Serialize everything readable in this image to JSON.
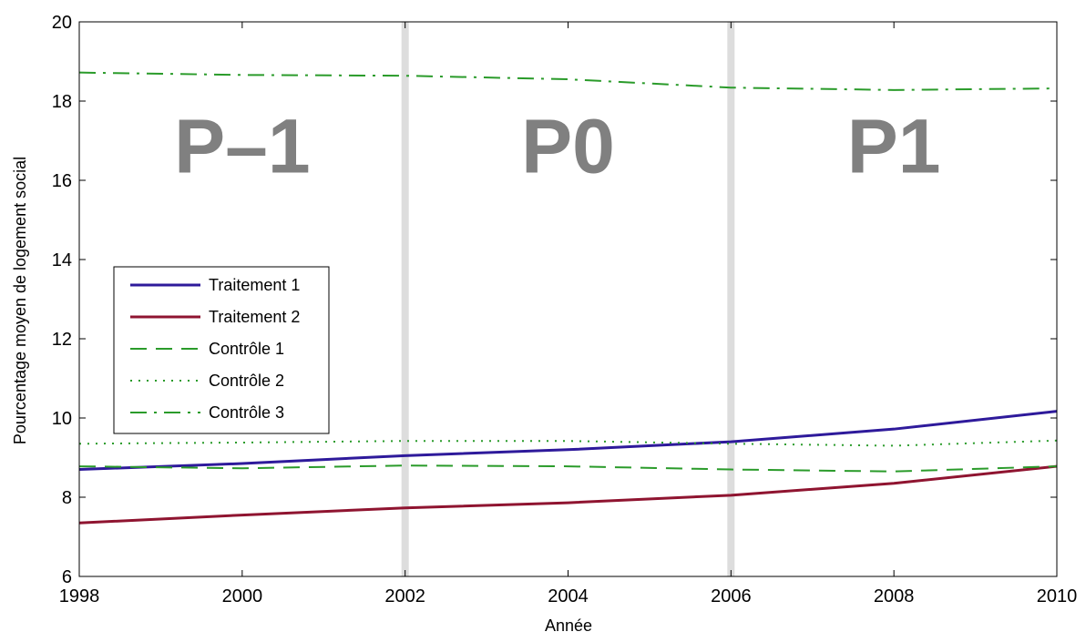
{
  "chart_data": {
    "type": "line",
    "xlabel": "Année",
    "ylabel": "Pourcentage moyen de logement social",
    "xlim": [
      1998,
      2010
    ],
    "ylim": [
      6,
      20
    ],
    "xticks": [
      1998,
      2000,
      2002,
      2004,
      2006,
      2008,
      2010
    ],
    "yticks": [
      6,
      8,
      10,
      12,
      14,
      16,
      18,
      20
    ],
    "grid": false,
    "legend_position": "left",
    "period_separators": [
      2002,
      2006
    ],
    "period_labels": [
      {
        "label": "P–1",
        "x_center": 2000,
        "y": 16.2
      },
      {
        "label": "P0",
        "x_center": 2004,
        "y": 16.2
      },
      {
        "label": "P1",
        "x_center": 2008,
        "y": 16.2
      }
    ],
    "series": [
      {
        "name": "Traitement 1",
        "color": "#2e1a9b",
        "style": "solid",
        "x": [
          1998,
          2000,
          2002,
          2004,
          2006,
          2008,
          2010
        ],
        "values": [
          8.7,
          8.85,
          9.05,
          9.2,
          9.4,
          9.72,
          10.17
        ]
      },
      {
        "name": "Traitement 2",
        "color": "#8f1430",
        "style": "solid",
        "x": [
          1998,
          2000,
          2002,
          2004,
          2006,
          2008,
          2010
        ],
        "values": [
          7.35,
          7.55,
          7.73,
          7.86,
          8.05,
          8.35,
          8.78
        ]
      },
      {
        "name": "Contrôle 1",
        "color": "#2a9b2a",
        "style": "dashed",
        "x": [
          1998,
          2000,
          2002,
          2004,
          2006,
          2008,
          2010
        ],
        "values": [
          8.78,
          8.73,
          8.8,
          8.78,
          8.7,
          8.65,
          8.78
        ]
      },
      {
        "name": "Contrôle 2",
        "color": "#2a9b2a",
        "style": "dotted",
        "x": [
          1998,
          2000,
          2002,
          2004,
          2006,
          2008,
          2010
        ],
        "values": [
          9.35,
          9.38,
          9.42,
          9.42,
          9.35,
          9.3,
          9.43
        ]
      },
      {
        "name": "Contrôle 3",
        "color": "#2a9b2a",
        "style": "dashdot",
        "x": [
          1998,
          2000,
          2002,
          2004,
          2006,
          2008,
          2010
        ],
        "values": [
          18.72,
          18.66,
          18.64,
          18.55,
          18.34,
          18.28,
          18.32
        ]
      }
    ]
  }
}
